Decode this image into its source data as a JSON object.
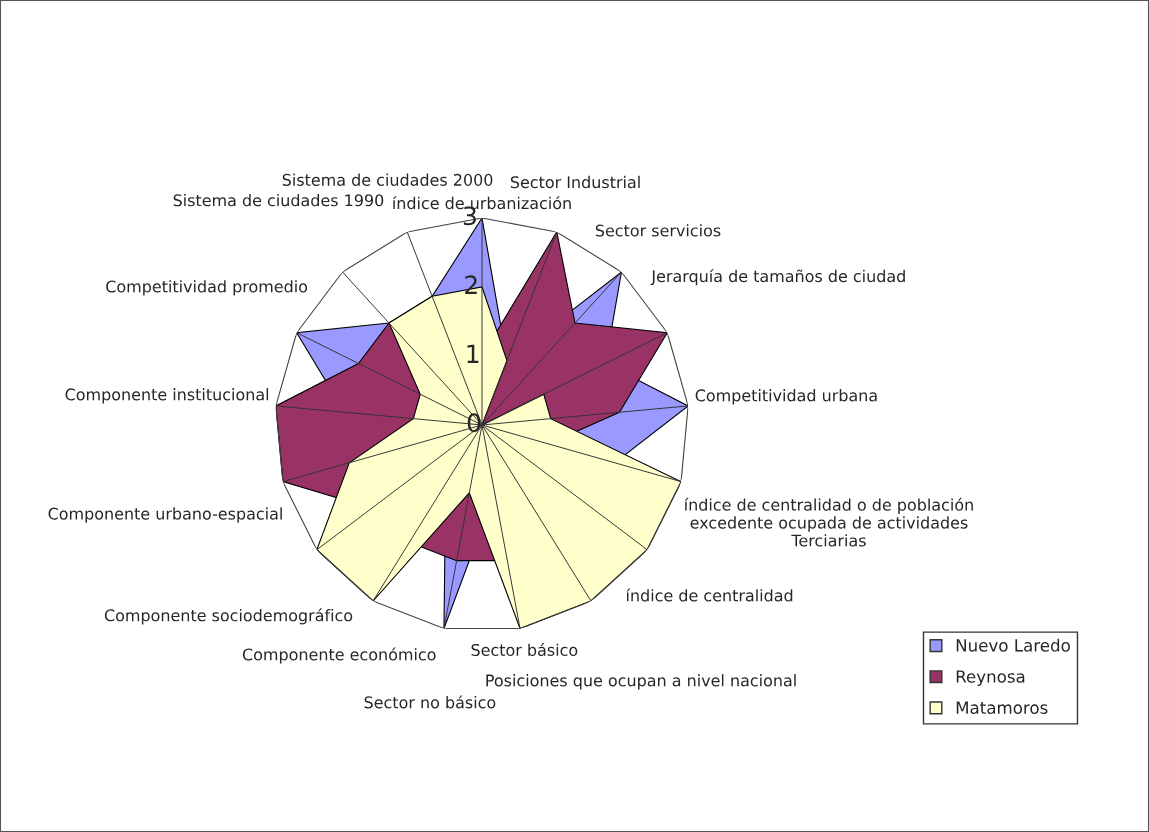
{
  "chart_data": {
    "type": "radar",
    "categories": [
      "índice de urbanización",
      "Sector Industrial",
      "Sector servicios",
      "Jerarquía de tamaños de ciudad",
      "Competitividad urbana",
      "índice de centralidad o de población\nexcedente ocupada de actividades\nTerciarias",
      "índice de centralidad",
      "Posiciones que ocupan a nivel nacional",
      "Sector básico",
      "Sector no básico",
      "Componente económico",
      "Componente sociodemográfico",
      "Componente urbano-espacial",
      "Componente institucional",
      "Competitividad promedio",
      "Sistema de ciudades 1990",
      "Sistema de ciudades 2000"
    ],
    "series": [
      {
        "name": "Nuevo Laredo",
        "color": "#9999ff",
        "values": [
          3,
          1,
          3,
          2,
          3,
          2,
          2,
          1,
          1,
          3,
          1,
          2,
          2,
          2,
          3,
          2,
          2
        ]
      },
      {
        "name": "Reynosa",
        "color": "#993366",
        "values": [
          1,
          3,
          2,
          3,
          2,
          1,
          1,
          1,
          2,
          2,
          2,
          2,
          3,
          3,
          2,
          2,
          1
        ]
      },
      {
        "name": "Matamoros",
        "color": "#ffffcc",
        "values": [
          2,
          1,
          0,
          1,
          1,
          3,
          3,
          3,
          3,
          1,
          3,
          3,
          2,
          1,
          1,
          2,
          2
        ]
      }
    ],
    "ylim": [
      0,
      3
    ],
    "yticks": [
      0,
      1,
      2,
      3
    ],
    "grid": "x",
    "legend": "bottom right"
  }
}
